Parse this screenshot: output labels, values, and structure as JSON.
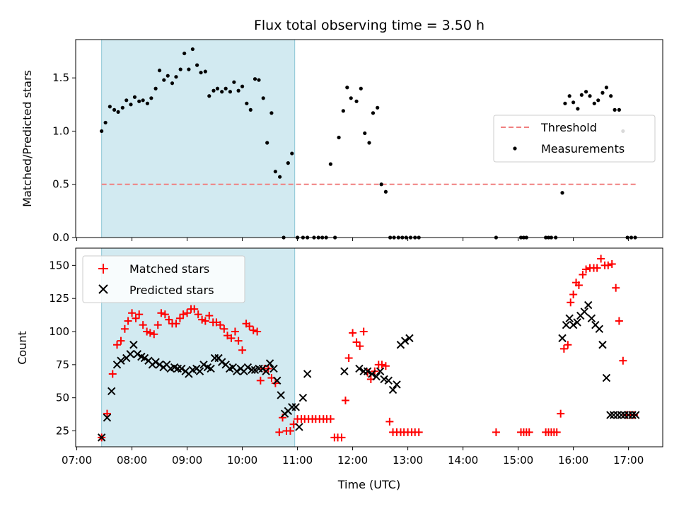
{
  "title": "Flux total observing time = 3.50 h",
  "xlabel": "Time (UTC)",
  "chart_data": [
    {
      "type": "scatter",
      "id": "ratio",
      "ylabel": "Matched/Predicted stars",
      "xlim": [
        6.98,
        17.62
      ],
      "ylim": [
        0,
        1.86
      ],
      "yticks": [
        0.0,
        0.5,
        1.0,
        1.5
      ],
      "ytick_labels": [
        "0.0",
        "0.5",
        "1.0",
        "1.5"
      ],
      "highlight_span": [
        7.45,
        10.95
      ],
      "threshold": {
        "name": "Threshold",
        "value": 0.5,
        "x": [
          7.45,
          17.15
        ],
        "color": "#f08080"
      },
      "legend_placement": "center-right",
      "series": [
        {
          "name": "Measurements",
          "color": "#000000",
          "x": [
            7.45,
            7.52,
            7.6,
            7.68,
            7.75,
            7.83,
            7.9,
            7.98,
            8.05,
            8.13,
            8.2,
            8.28,
            8.35,
            8.43,
            8.5,
            8.58,
            8.65,
            8.73,
            8.8,
            8.88,
            8.95,
            9.03,
            9.1,
            9.18,
            9.25,
            9.33,
            9.4,
            9.48,
            9.55,
            9.63,
            9.7,
            9.78,
            9.85,
            9.93,
            10.0,
            10.08,
            10.15,
            10.23,
            10.3,
            10.38,
            10.45,
            10.53,
            10.6,
            10.68,
            10.75,
            10.83,
            10.9,
            11.0,
            11.1,
            11.18,
            11.3,
            11.38,
            11.45,
            11.52,
            11.6,
            11.68,
            11.75,
            11.83,
            11.9,
            11.97,
            12.07,
            12.15,
            12.22,
            12.3,
            12.37,
            12.45,
            12.52,
            12.6,
            12.68,
            12.75,
            12.83,
            12.9,
            12.97,
            13.05,
            13.13,
            13.2,
            14.6,
            15.05,
            15.1,
            15.15,
            15.5,
            15.55,
            15.6,
            15.68,
            15.8,
            15.85,
            15.93,
            16.0,
            16.08,
            16.15,
            16.23,
            16.3,
            16.38,
            16.45,
            16.53,
            16.6,
            16.68,
            16.75,
            16.83,
            16.9,
            16.98,
            17.05,
            17.12
          ],
          "y": [
            1.0,
            1.08,
            1.23,
            1.2,
            1.18,
            1.22,
            1.29,
            1.25,
            1.32,
            1.28,
            1.29,
            1.26,
            1.31,
            1.4,
            1.57,
            1.48,
            1.52,
            1.45,
            1.51,
            1.58,
            1.73,
            1.58,
            1.77,
            1.62,
            1.55,
            1.56,
            1.33,
            1.38,
            1.4,
            1.37,
            1.4,
            1.37,
            1.46,
            1.38,
            1.42,
            1.26,
            1.2,
            1.49,
            1.48,
            1.31,
            0.89,
            1.17,
            0.62,
            0.57,
            0.0,
            0.7,
            0.79,
            0.0,
            0.0,
            0.0,
            0.0,
            0.0,
            0.0,
            0.0,
            0.69,
            0.0,
            0.94,
            1.19,
            1.41,
            1.31,
            1.28,
            1.4,
            0.98,
            0.89,
            1.17,
            1.22,
            0.5,
            0.43,
            0.0,
            0.0,
            0.0,
            0.0,
            0.0,
            0.0,
            0.0,
            0.0,
            0.0,
            0.0,
            0.0,
            0.0,
            0.0,
            0.0,
            0.0,
            0.0,
            0.42,
            1.26,
            1.33,
            1.27,
            1.21,
            1.34,
            1.37,
            1.33,
            1.26,
            1.29,
            1.36,
            1.41,
            1.33,
            1.2,
            1.2,
            1.0,
            0.0,
            0.0,
            0.0
          ]
        }
      ]
    },
    {
      "type": "scatter",
      "id": "counts",
      "ylabel": "Count",
      "xlim": [
        6.98,
        17.62
      ],
      "ylim": [
        13,
        163
      ],
      "yticks": [
        25,
        50,
        75,
        100,
        125,
        150
      ],
      "ytick_labels": [
        "25",
        "50",
        "75",
        "100",
        "125",
        "150"
      ],
      "xticks": [
        7,
        8,
        9,
        10,
        11,
        12,
        13,
        14,
        15,
        16,
        17
      ],
      "xtick_labels": [
        "07:00",
        "08:00",
        "09:00",
        "10:00",
        "11:00",
        "12:00",
        "13:00",
        "14:00",
        "15:00",
        "16:00",
        "17:00"
      ],
      "highlight_span": [
        7.45,
        10.95
      ],
      "legend_placement": "upper-left",
      "series": [
        {
          "name": "Matched stars",
          "marker": "plus",
          "color": "#ff0000",
          "x": [
            7.45,
            7.55,
            7.65,
            7.73,
            7.8,
            7.87,
            7.93,
            8.0,
            8.07,
            8.13,
            8.2,
            8.27,
            8.33,
            8.4,
            8.47,
            8.53,
            8.6,
            8.67,
            8.73,
            8.8,
            8.87,
            8.93,
            9.0,
            9.07,
            9.13,
            9.2,
            9.27,
            9.33,
            9.4,
            9.47,
            9.53,
            9.6,
            9.67,
            9.73,
            9.8,
            9.87,
            9.93,
            10.0,
            10.07,
            10.13,
            10.2,
            10.27,
            10.33,
            10.4,
            10.47,
            10.53,
            10.6,
            10.67,
            10.73,
            10.8,
            10.87,
            10.93,
            11.0,
            11.07,
            11.13,
            11.2,
            11.27,
            11.33,
            11.4,
            11.47,
            11.53,
            11.6,
            11.67,
            11.73,
            11.8,
            11.87,
            11.93,
            12.0,
            12.07,
            12.13,
            12.2,
            12.27,
            12.33,
            12.4,
            12.47,
            12.53,
            12.6,
            12.67,
            12.73,
            12.8,
            12.87,
            12.93,
            13.0,
            13.07,
            13.13,
            13.2,
            14.6,
            15.05,
            15.1,
            15.15,
            15.2,
            15.5,
            15.55,
            15.6,
            15.65,
            15.7,
            15.77,
            15.83,
            15.9,
            15.95,
            16.0,
            16.05,
            16.1,
            16.17,
            16.23,
            16.3,
            16.37,
            16.43,
            16.5,
            16.57,
            16.63,
            16.7,
            16.77,
            16.83,
            16.9,
            16.97,
            17.03,
            17.1
          ],
          "y": [
            20,
            38,
            68,
            90,
            93,
            102,
            108,
            114,
            110,
            113,
            105,
            100,
            99,
            98,
            105,
            114,
            113,
            109,
            106,
            106,
            110,
            113,
            114,
            117,
            117,
            113,
            109,
            108,
            112,
            107,
            107,
            105,
            102,
            97,
            95,
            100,
            93,
            86,
            106,
            104,
            101,
            100,
            63,
            72,
            72,
            65,
            61,
            24,
            35,
            25,
            25,
            30,
            34,
            34,
            34,
            34,
            34,
            34,
            34,
            34,
            34,
            34,
            20,
            20,
            20,
            48,
            80,
            99,
            92,
            89,
            100,
            69,
            64,
            70,
            75,
            75,
            74,
            32,
            24,
            24,
            24,
            24,
            24,
            24,
            24,
            24,
            24,
            24,
            24,
            24,
            24,
            24,
            24,
            24,
            24,
            24,
            38,
            87,
            90,
            122,
            128,
            137,
            135,
            143,
            147,
            148,
            148,
            148,
            155,
            150,
            150,
            151,
            133,
            108,
            78,
            37,
            37,
            37
          ]
        },
        {
          "name": "Predicted stars",
          "marker": "x",
          "color": "#000000",
          "x": [
            7.45,
            7.55,
            7.63,
            7.73,
            7.8,
            7.9,
            7.97,
            8.03,
            8.1,
            8.17,
            8.23,
            8.3,
            8.37,
            8.43,
            8.5,
            8.57,
            8.63,
            8.7,
            8.77,
            8.83,
            8.9,
            8.97,
            9.03,
            9.1,
            9.17,
            9.23,
            9.3,
            9.37,
            9.43,
            9.5,
            9.57,
            9.63,
            9.7,
            9.77,
            9.83,
            9.9,
            9.97,
            10.03,
            10.1,
            10.17,
            10.23,
            10.3,
            10.37,
            10.43,
            10.5,
            10.57,
            10.63,
            10.7,
            10.77,
            10.83,
            10.9,
            10.97,
            11.03,
            11.1,
            11.18,
            11.85,
            12.12,
            12.2,
            12.27,
            12.35,
            12.43,
            12.5,
            12.57,
            12.65,
            12.73,
            12.8,
            12.87,
            12.95,
            13.03,
            15.8,
            15.87,
            15.93,
            16.0,
            16.07,
            16.13,
            16.2,
            16.27,
            16.33,
            16.4,
            16.47,
            16.53,
            16.6,
            16.67,
            16.73,
            16.8,
            16.87,
            16.93,
            17.0,
            17.07,
            17.13
          ],
          "y": [
            20,
            35,
            55,
            75,
            78,
            80,
            83,
            90,
            83,
            81,
            80,
            78,
            75,
            77,
            75,
            73,
            75,
            72,
            73,
            72,
            72,
            70,
            68,
            71,
            72,
            70,
            75,
            73,
            72,
            80,
            80,
            77,
            75,
            72,
            73,
            70,
            72,
            70,
            73,
            71,
            71,
            72,
            72,
            70,
            76,
            72,
            63,
            52,
            38,
            40,
            43,
            43,
            28,
            50,
            68,
            70,
            72,
            70,
            70,
            68,
            66,
            70,
            64,
            63,
            56,
            60,
            90,
            93,
            95,
            95,
            105,
            110,
            105,
            107,
            112,
            115,
            120,
            110,
            105,
            102,
            90,
            65,
            37,
            37,
            37,
            37,
            37,
            37,
            37,
            37
          ]
        }
      ]
    }
  ]
}
